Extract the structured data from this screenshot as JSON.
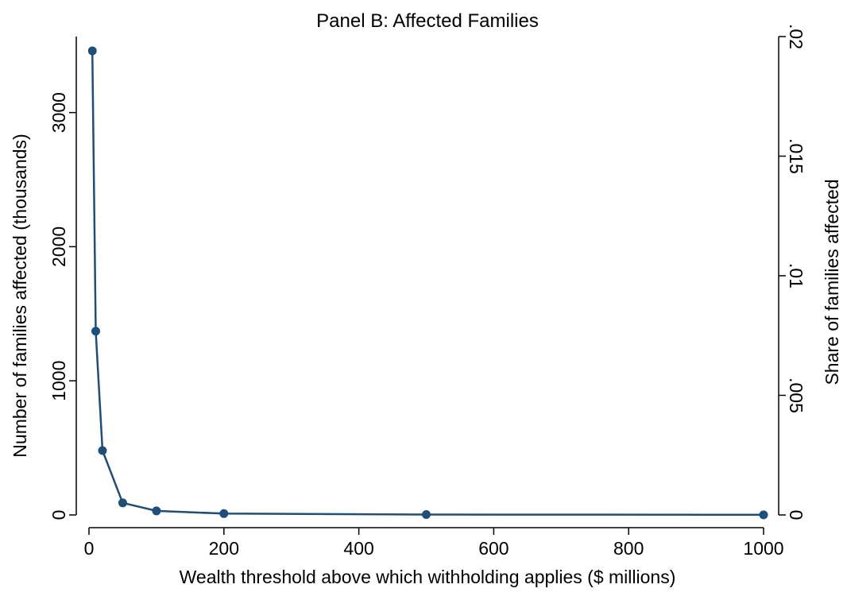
{
  "chart_data": {
    "type": "line",
    "title": "Panel B: Affected Families",
    "xlabel": "Wealth threshold above which withholding applies ($ millions)",
    "ylabel": "Number of families affected (thousands)",
    "y2label": "Share of families affected",
    "x": [
      5,
      10,
      20,
      50,
      100,
      200,
      500,
      1000
    ],
    "y": [
      3460,
      1370,
      480,
      90,
      30,
      10,
      3,
      1
    ],
    "xlim": [
      0,
      1000
    ],
    "ylim": [
      0,
      3460
    ],
    "y2lim": [
      0,
      0.02
    ],
    "xticks": [
      0,
      200,
      400,
      600,
      800,
      1000
    ],
    "xtick_labels": [
      "0",
      "200",
      "400",
      "600",
      "800",
      "1000"
    ],
    "yticks": [
      0,
      1000,
      2000,
      3000
    ],
    "ytick_labels": [
      "0",
      "1000",
      "2000",
      "3000"
    ],
    "y2ticks": [
      0,
      0.005,
      0.01,
      0.015,
      0.02
    ],
    "y2tick_labels": [
      "0",
      ".005",
      ".01",
      ".015",
      ".02"
    ],
    "grid": false,
    "legend": "none",
    "line_color": "#1f4e79",
    "marker_color": "#1f4e79"
  }
}
